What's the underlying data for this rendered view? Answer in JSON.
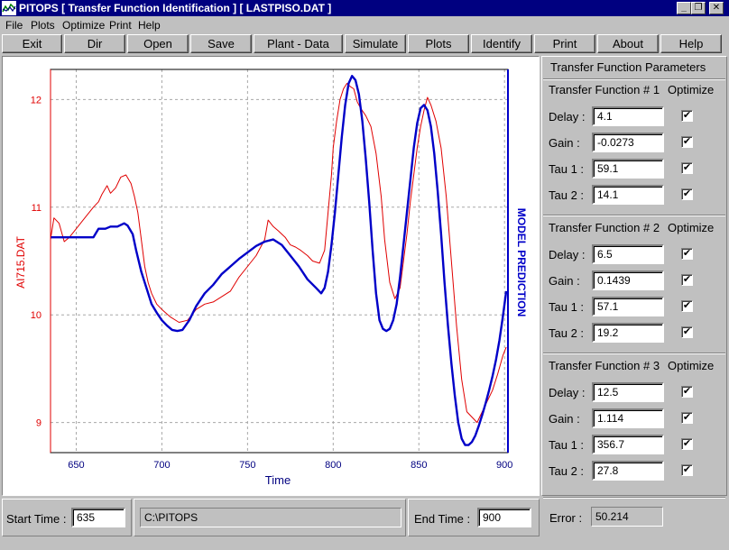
{
  "window": {
    "title": "PITOPS  [ Transfer Function Identification ]   [ LASTPISO.DAT ]",
    "minimize_glyph": "_",
    "restore_glyph": "❐",
    "close_glyph": "✕"
  },
  "menu": [
    {
      "label": "File"
    },
    {
      "label": "Plots"
    },
    {
      "label": "Optimize"
    },
    {
      "label": "Print"
    },
    {
      "label": "Help"
    }
  ],
  "toolbar": [
    "Exit",
    "Dir",
    "Open",
    "Save",
    "Plant - Data",
    "Simulate",
    "Plots",
    "Identify",
    "Print",
    "About",
    "Help"
  ],
  "right_panel": {
    "title": "Transfer Function Parameters",
    "transfer_functions": [
      {
        "header": "Transfer Function # 1",
        "optimize_label": "Optimize",
        "params": [
          {
            "label": "Delay :",
            "value": "4.1",
            "checked": true
          },
          {
            "label": "Gain   :",
            "value": "-0.0273",
            "checked": true
          },
          {
            "label": "Tau 1 :",
            "value": "59.1",
            "checked": true
          },
          {
            "label": "Tau 2 :",
            "value": "14.1",
            "checked": true
          }
        ]
      },
      {
        "header": "Transfer Function # 2",
        "optimize_label": "Optimize",
        "params": [
          {
            "label": "Delay :",
            "value": "6.5",
            "checked": true
          },
          {
            "label": "Gain   :",
            "value": "0.1439",
            "checked": true
          },
          {
            "label": "Tau 1 :",
            "value": "57.1",
            "checked": true
          },
          {
            "label": "Tau 2 :",
            "value": "19.2",
            "checked": true
          }
        ]
      },
      {
        "header": "Transfer Function # 3",
        "optimize_label": "Optimize",
        "params": [
          {
            "label": "Delay :",
            "value": "12.5",
            "checked": true
          },
          {
            "label": "Gain   :",
            "value": "1.114",
            "checked": true
          },
          {
            "label": "Tau 1 :",
            "value": "356.7",
            "checked": true
          },
          {
            "label": "Tau 2 :",
            "value": "27.8",
            "checked": true
          }
        ]
      }
    ],
    "check_glyph": "✔",
    "error_label": "Error :",
    "error_value": "50.214"
  },
  "status": {
    "start_label": "Start Time :",
    "start_value": "635",
    "path": "C:\\PITOPS",
    "end_label": "End Time :",
    "end_value": "900"
  },
  "colors": {
    "titlebar": "#000080",
    "measured": "#e00000",
    "model": "#0000c8",
    "grid": "#a8a8a8"
  },
  "icons": {
    "app": "chart-app-icon",
    "check": "check-icon"
  },
  "chart_data": {
    "type": "line",
    "xlabel": "Time",
    "ylabel": "AI715.DAT",
    "y2label": "MODEL PREDICTION",
    "xlim": [
      635,
      902
    ],
    "ylim": [
      8.72,
      12.28
    ],
    "xticks": [
      650,
      700,
      750,
      800,
      850,
      900
    ],
    "yticks": [
      9,
      10,
      11,
      12
    ],
    "grid": true,
    "series": [
      {
        "name": "AI715.DAT",
        "color": "#e00000",
        "x": [
          635,
          637,
          640,
          643,
          646,
          650,
          655,
          660,
          663,
          665,
          668,
          670,
          673,
          676,
          679,
          682,
          684,
          686,
          688,
          690,
          692,
          694,
          697,
          700,
          705,
          710,
          715,
          720,
          725,
          730,
          735,
          740,
          745,
          750,
          755,
          760,
          762,
          765,
          768,
          772,
          775,
          778,
          781,
          785,
          788,
          792,
          795,
          797,
          799,
          800,
          802,
          804,
          806,
          808,
          810,
          812,
          814,
          816,
          819,
          822,
          825,
          828,
          830,
          833,
          836,
          839,
          841,
          843,
          845,
          847,
          849,
          851,
          853,
          855,
          857,
          860,
          863,
          866,
          869,
          872,
          875,
          878,
          881,
          884,
          887,
          890,
          893,
          896,
          899,
          901
        ],
        "y": [
          10.7,
          10.9,
          10.85,
          10.68,
          10.72,
          10.8,
          10.9,
          11.0,
          11.05,
          11.12,
          11.2,
          11.13,
          11.18,
          11.28,
          11.3,
          11.22,
          11.1,
          10.95,
          10.7,
          10.45,
          10.3,
          10.2,
          10.1,
          10.05,
          9.98,
          9.93,
          9.95,
          10.05,
          10.1,
          10.12,
          10.17,
          10.22,
          10.35,
          10.45,
          10.55,
          10.7,
          10.88,
          10.82,
          10.78,
          10.72,
          10.65,
          10.63,
          10.6,
          10.55,
          10.5,
          10.48,
          10.6,
          10.95,
          11.3,
          11.55,
          11.8,
          12.0,
          12.1,
          12.15,
          12.12,
          12.1,
          11.98,
          11.92,
          11.85,
          11.75,
          11.5,
          11.1,
          10.7,
          10.3,
          10.15,
          10.25,
          10.5,
          10.75,
          11.05,
          11.3,
          11.55,
          11.75,
          11.9,
          12.02,
          11.95,
          11.8,
          11.55,
          11.1,
          10.5,
          9.9,
          9.4,
          9.1,
          9.05,
          9.0,
          9.1,
          9.2,
          9.3,
          9.45,
          9.62,
          9.7
        ]
      },
      {
        "name": "MODEL PREDICTION",
        "color": "#0000c8",
        "x": [
          635,
          645,
          650,
          655,
          660,
          663,
          667,
          670,
          674,
          678,
          680,
          683,
          685,
          688,
          691,
          694,
          697,
          700,
          703,
          706,
          709,
          712,
          716,
          720,
          725,
          730,
          735,
          740,
          745,
          750,
          755,
          760,
          765,
          770,
          775,
          780,
          785,
          790,
          793,
          795,
          797,
          799,
          801,
          803,
          805,
          807,
          809,
          811,
          813,
          815,
          817,
          819,
          821,
          823,
          825,
          827,
          829,
          831,
          833,
          835,
          837,
          839,
          841,
          843,
          845,
          847,
          849,
          851,
          853,
          855,
          857,
          859,
          861,
          863,
          865,
          867,
          869,
          871,
          873,
          875,
          877,
          879,
          881,
          883,
          885,
          887,
          889,
          891,
          893,
          895,
          897,
          899,
          901
        ],
        "y": [
          10.72,
          10.72,
          10.72,
          10.72,
          10.72,
          10.8,
          10.8,
          10.82,
          10.82,
          10.85,
          10.83,
          10.75,
          10.6,
          10.4,
          10.25,
          10.1,
          10.02,
          9.95,
          9.9,
          9.86,
          9.85,
          9.86,
          9.95,
          10.08,
          10.2,
          10.28,
          10.38,
          10.45,
          10.52,
          10.58,
          10.64,
          10.68,
          10.7,
          10.65,
          10.55,
          10.45,
          10.33,
          10.25,
          10.2,
          10.25,
          10.4,
          10.65,
          10.95,
          11.3,
          11.65,
          11.95,
          12.15,
          12.22,
          12.18,
          12.05,
          11.8,
          11.45,
          11.05,
          10.6,
          10.2,
          9.95,
          9.87,
          9.85,
          9.87,
          9.95,
          10.1,
          10.35,
          10.65,
          10.95,
          11.25,
          11.55,
          11.78,
          11.92,
          11.95,
          11.9,
          11.75,
          11.5,
          11.15,
          10.75,
          10.3,
          9.9,
          9.55,
          9.25,
          9.0,
          8.85,
          8.79,
          8.79,
          8.82,
          8.88,
          8.97,
          9.07,
          9.18,
          9.3,
          9.43,
          9.58,
          9.76,
          9.98,
          10.22
        ]
      }
    ]
  }
}
